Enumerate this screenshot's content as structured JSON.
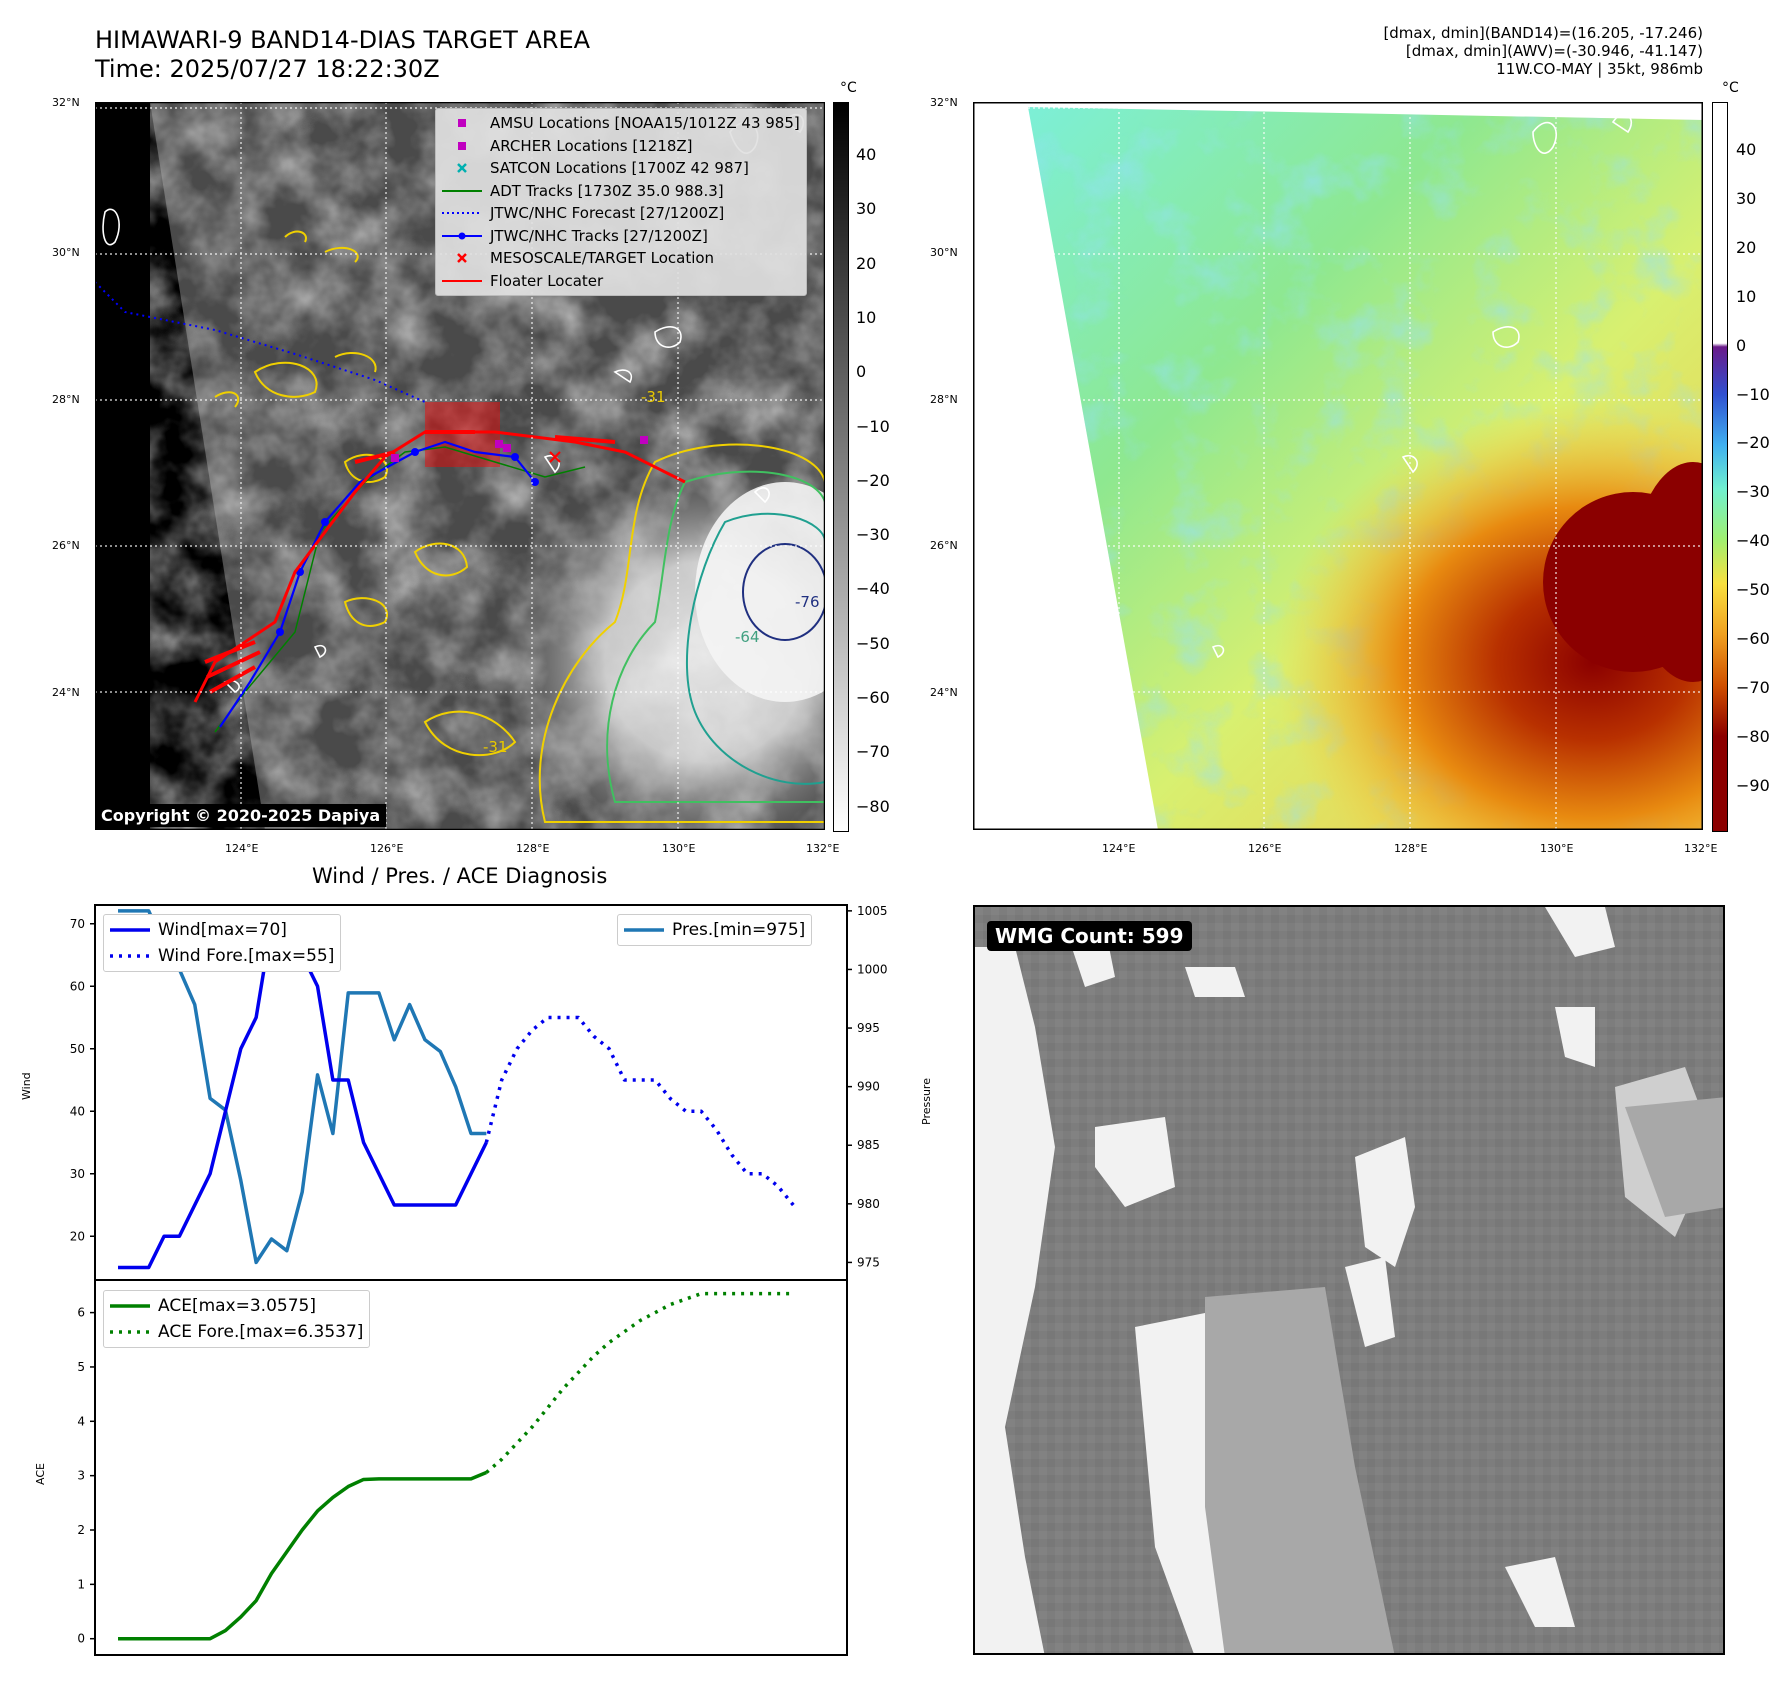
{
  "header": {
    "title_line1": "HIMAWARI-9 BAND14-DIAS TARGET AREA",
    "title_line2": "Time: 2025/07/27 18:22:30Z",
    "right_line1": "[dmax, dmin](BAND14)=(16.205, -17.246)",
    "right_line2": "[dmax, dmin](AWV)=(-30.946, -41.147)",
    "right_line3": "11W.CO-MAY | 35kt, 986mb"
  },
  "map": {
    "lat_labels": [
      "32°N",
      "30°N",
      "28°N",
      "26°N",
      "24°N"
    ],
    "lon_labels": [
      "124°E",
      "126°E",
      "128°E",
      "130°E",
      "132°E"
    ],
    "colorbar_unit": "°C",
    "colorbar1_ticks": [
      "40",
      "30",
      "20",
      "10",
      "0",
      "−10",
      "−20",
      "−30",
      "−40",
      "−50",
      "−60",
      "−70",
      "−80"
    ],
    "colorbar2_ticks": [
      "40",
      "30",
      "20",
      "10",
      "0",
      "−10",
      "−20",
      "−30",
      "−40",
      "−50",
      "−60",
      "−70",
      "−80",
      "−90"
    ],
    "contour_labels": [
      "-31",
      "-64",
      "-76"
    ],
    "copyright": "Copyright © 2020-2025 Dapiya",
    "legend": [
      {
        "label": "AMSU Locations [NOAA15/1012Z 43 985]",
        "color": "#c000c0",
        "kind": "square"
      },
      {
        "label": "ARCHER Locations [1218Z]",
        "color": "#c000c0",
        "kind": "square"
      },
      {
        "label": "SATCON Locations [1700Z 42 987]",
        "color": "#00b0b0",
        "kind": "x"
      },
      {
        "label": "ADT Tracks [1730Z 35.0 988.3]",
        "color": "#008000",
        "kind": "line"
      },
      {
        "label": "JTWC/NHC Forecast [27/1200Z]",
        "color": "#0000ff",
        "kind": "dotted"
      },
      {
        "label": "JTWC/NHC Tracks [27/1200Z]",
        "color": "#0000ff",
        "kind": "linedot"
      },
      {
        "label": "MESOSCALE/TARGET Location",
        "color": "#ff0000",
        "kind": "x"
      },
      {
        "label": "Floater Locater",
        "color": "#ff0000",
        "kind": "line"
      }
    ]
  },
  "diagnosis": {
    "title": "Wind / Pres. / ACE Diagnosis",
    "wind_ylabel": "Wind",
    "pres_ylabel": "Pressure",
    "ace_ylabel": "ACE",
    "wind_legend": "Wind[max=70]",
    "wind_fore_legend": "Wind Fore.[max=55]",
    "pres_legend": "Pres.[min=975]",
    "ace_legend": "ACE[max=3.0575]",
    "ace_fore_legend": "ACE Fore.[max=6.3537]",
    "colors": {
      "wind": "#0000ee",
      "pres": "#1f77b4",
      "ace": "#008000"
    }
  },
  "wmg": {
    "label": "WMG Count: 599"
  },
  "chart_data": [
    {
      "type": "line",
      "title": "Wind / Pres. / ACE Diagnosis",
      "ylabel": "Wind",
      "ylim": [
        13,
        73
      ],
      "yticks": [
        20,
        30,
        40,
        50,
        60,
        70
      ],
      "series": [
        {
          "name": "Wind[max=70]",
          "style": "solid",
          "x": [
            0,
            1,
            2,
            3,
            4,
            5,
            6,
            7,
            8,
            9,
            10,
            11,
            12,
            13,
            14,
            15,
            16,
            17,
            18,
            19,
            20,
            21,
            22,
            23,
            24
          ],
          "values": [
            15,
            15,
            15,
            20,
            20,
            25,
            30,
            40,
            50,
            55,
            70,
            65,
            65,
            60,
            45,
            45,
            35,
            30,
            25,
            25,
            25,
            25,
            25,
            30,
            35
          ]
        },
        {
          "name": "Wind Fore.[max=55]",
          "style": "dotted",
          "x": [
            24,
            25,
            26,
            27,
            28,
            29,
            30,
            31,
            32,
            33,
            34,
            35,
            36,
            37,
            38,
            39,
            40,
            41,
            42,
            43,
            44
          ],
          "values": [
            35,
            45,
            50,
            53,
            55,
            55,
            55,
            52,
            50,
            45,
            45,
            45,
            42,
            40,
            40,
            37,
            33,
            30,
            30,
            28,
            25
          ]
        }
      ]
    },
    {
      "type": "line",
      "ylabel": "Pressure",
      "ylim": [
        973.5,
        1005.5
      ],
      "yticks": [
        975,
        980,
        985,
        990,
        995,
        1000,
        1005
      ],
      "series": [
        {
          "name": "Pres.[min=975]",
          "x": [
            0,
            1,
            2,
            3,
            4,
            5,
            6,
            7,
            8,
            9,
            10,
            11,
            12,
            13,
            14,
            15,
            16,
            17,
            18,
            19,
            20,
            21,
            22,
            23,
            24
          ],
          "values": [
            1005,
            1005,
            1005,
            1002,
            1000,
            997,
            989,
            988,
            982,
            975,
            977,
            976,
            981,
            991,
            986,
            998,
            998,
            998,
            994,
            997,
            994,
            993,
            990,
            986,
            986
          ]
        }
      ]
    },
    {
      "type": "line",
      "ylabel": "ACE",
      "ylim": [
        -0.3,
        6.6
      ],
      "yticks": [
        0,
        1,
        2,
        3,
        4,
        5,
        6
      ],
      "series": [
        {
          "name": "ACE[max=3.0575]",
          "style": "solid",
          "x": [
            0,
            1,
            2,
            3,
            4,
            5,
            6,
            7,
            8,
            9,
            10,
            11,
            12,
            13,
            14,
            15,
            16,
            17,
            18,
            19,
            20,
            21,
            22,
            23,
            24
          ],
          "values": [
            0,
            0,
            0,
            0,
            0,
            0,
            0,
            0.15,
            0.4,
            0.7,
            1.2,
            1.6,
            2.0,
            2.35,
            2.6,
            2.8,
            2.93,
            2.94,
            2.94,
            2.94,
            2.94,
            2.94,
            2.94,
            2.94,
            3.0575
          ]
        },
        {
          "name": "ACE Fore.[max=6.3537]",
          "style": "dotted",
          "x": [
            24,
            25,
            26,
            27,
            28,
            29,
            30,
            31,
            32,
            33,
            34,
            35,
            36,
            37,
            38,
            39,
            40,
            41,
            42,
            43,
            44
          ],
          "values": [
            3.0575,
            3.3,
            3.6,
            3.9,
            4.25,
            4.6,
            4.9,
            5.2,
            5.45,
            5.65,
            5.85,
            6.0,
            6.15,
            6.25,
            6.35,
            6.35,
            6.35,
            6.35,
            6.35,
            6.35,
            6.35
          ]
        }
      ]
    }
  ]
}
